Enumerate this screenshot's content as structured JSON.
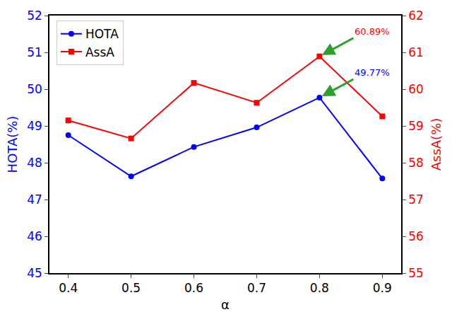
{
  "chart_data": {
    "type": "line",
    "x_label": "α",
    "y_label": "HOTA(%)",
    "y2_label": "AssA(%)",
    "x": [
      0.4,
      0.5,
      0.6,
      0.7,
      0.8,
      0.9
    ],
    "series": [
      {
        "name": "HOTA",
        "color": "#0000ff",
        "marker": "circle",
        "axis": "y",
        "values": [
          48.75,
          47.63,
          48.43,
          48.96,
          49.77,
          47.57
        ]
      },
      {
        "name": "AssA",
        "color": "#ff0000",
        "marker": "square",
        "axis": "y2",
        "values": [
          59.15,
          58.66,
          60.17,
          59.63,
          60.89,
          59.26
        ]
      }
    ],
    "xlim": [
      0.37,
      0.93
    ],
    "xticks": [
      0.4,
      0.5,
      0.6,
      0.7,
      0.8,
      0.9
    ],
    "ylim": [
      45,
      52
    ],
    "yticks": [
      45,
      46,
      47,
      48,
      49,
      50,
      51,
      52
    ],
    "y2lim": [
      55,
      62
    ],
    "y2ticks": [
      55,
      56,
      57,
      58,
      59,
      60,
      61,
      62
    ],
    "annotations": [
      {
        "text": "60.89%",
        "x": 0.8,
        "y": 60.89,
        "axis": "y2",
        "color": "#ff0000"
      },
      {
        "text": "49.77%",
        "x": 0.8,
        "y": 49.77,
        "axis": "y",
        "color": "#0000ff"
      }
    ],
    "grid": false,
    "legend": "upper left"
  }
}
